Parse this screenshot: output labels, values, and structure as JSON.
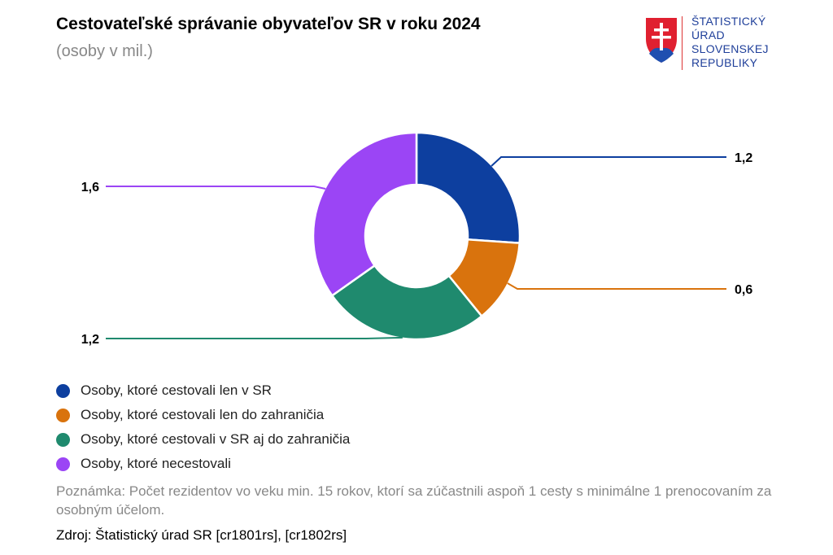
{
  "header": {
    "title": "Cestovateľské správanie obyvateľov SR v roku 2024",
    "subtitle": "(osoby v mil.)"
  },
  "logo": {
    "lines": [
      "ŠTATISTICKÝ",
      "ÚRAD",
      "SLOVENSKEJ",
      "REPUBLIKY"
    ],
    "icon": "slovak-coat-of-arms-icon"
  },
  "chart_data": {
    "type": "pie",
    "style": "donut",
    "categories": [
      "Osoby, ktoré cestovali len v SR",
      "Osoby, ktoré cestovali len do zahraničia",
      "Osoby, ktoré cestovali v SR aj do zahraničia",
      "Osoby, ktoré necestovali"
    ],
    "values": [
      1.2,
      0.6,
      1.2,
      1.6
    ],
    "value_labels": [
      "1,2",
      "0,6",
      "1,2",
      "1,6"
    ],
    "colors": [
      "#0d3f9f",
      "#d9730d",
      "#1f8a6e",
      "#9b45f5"
    ],
    "legend_position": "bottom-left"
  },
  "footer": {
    "note": "Poznámka: Počet rezidentov vo veku min. 15 rokov, ktorí sa zúčastnili aspoň 1 cesty s minimálne 1 prenocovaním za osobným účelom.",
    "source": "Zdroj: Štatistický úrad SR [cr1801rs], [cr1802rs]"
  }
}
